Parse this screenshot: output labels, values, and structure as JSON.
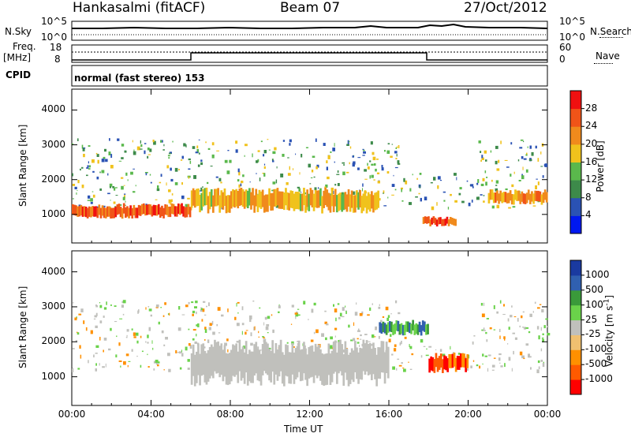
{
  "header": {
    "station": "Hankasalmi (fitACF)",
    "beam": "Beam 07",
    "date": "27/Oct/2012"
  },
  "top_panels": {
    "nsky_label": "N.Sky",
    "nsky_ticks": [
      "10^5",
      "10^0"
    ],
    "nsearch_label": "N.Search",
    "nsearch_ticks": [
      "10^5",
      "10^0"
    ],
    "freq_label": "Freq.",
    "freq_unit": "[MHz]",
    "freq_ticks": [
      "18",
      "8"
    ],
    "nave_label": "Nave",
    "nave_ticks": [
      "60",
      "0"
    ],
    "cpid_label": "CPID",
    "cpid_value": "normal (fast stereo) 153"
  },
  "colors": {
    "power_scale": [
      "#0018f0",
      "#2a52b4",
      "#3d8a4a",
      "#5ab84c",
      "#f0c21c",
      "#f08a1c",
      "#f05418",
      "#f01010"
    ],
    "velocity_scale": [
      "#ff0000",
      "#ff5a00",
      "#ff9000",
      "#f0c070",
      "#c0c0bc",
      "#6ad24a",
      "#3a9a3a",
      "#3060b0",
      "#1a3aa0"
    ],
    "ground_scatter": "#c0c0bc"
  },
  "chart_data": [
    {
      "type": "heatmap",
      "title": "",
      "xlabel": "Time UT",
      "ylabel": "Slant Range [km]",
      "x_ticks": [
        "00:00",
        "04:00",
        "08:00",
        "12:00",
        "16:00",
        "20:00",
        "00:00"
      ],
      "xlim_hours": [
        0,
        24
      ],
      "y_ticks": [
        "1000",
        "2000",
        "3000",
        "4000"
      ],
      "ylim": [
        180,
        4600
      ],
      "colorbar": {
        "label": "Power [dB]",
        "ticks": [
          "4",
          "8",
          "12",
          "16",
          "20",
          "24",
          "28"
        ],
        "range": [
          0,
          30
        ]
      },
      "features": [
        {
          "name": "band1",
          "t_start": 0.0,
          "t_end": 6.0,
          "range_center": 1100,
          "range_width": 300,
          "value": 28
        },
        {
          "name": "band2",
          "t_start": 6.0,
          "t_end": 15.5,
          "range_center": 1400,
          "range_width": 500,
          "value": 22
        },
        {
          "name": "band3",
          "t_start": 17.7,
          "t_end": 19.4,
          "range_center": 800,
          "range_width": 200,
          "value": 28
        },
        {
          "name": "band4",
          "t_start": 21.0,
          "t_end": 24.0,
          "range_center": 1500,
          "range_width": 300,
          "value": 24
        }
      ]
    },
    {
      "type": "heatmap",
      "title": "",
      "xlabel": "Time UT",
      "ylabel": "Slant Range [km]",
      "x_ticks": [
        "00:00",
        "04:00",
        "08:00",
        "12:00",
        "16:00",
        "20:00",
        "00:00"
      ],
      "xlim_hours": [
        0,
        24
      ],
      "y_ticks": [
        "1000",
        "2000",
        "3000",
        "4000"
      ],
      "ylim": [
        180,
        4600
      ],
      "colorbar": {
        "label": "Velocity [m s",
        "label_superscript": "-1",
        "label_close": "]",
        "ticks": [
          "1000",
          "500",
          "100",
          "25",
          "-25",
          "-100",
          "-500",
          "-1000"
        ],
        "range": [
          -1000,
          1000
        ]
      },
      "features": [
        {
          "name": "ground_scatter",
          "t_start": 6.0,
          "t_end": 16.0,
          "range_center": 1400,
          "range_width": 900,
          "value": 0
        },
        {
          "name": "negative_patch",
          "t_start": 18.0,
          "t_end": 20.0,
          "range_center": 1400,
          "range_width": 400,
          "value": -300
        },
        {
          "name": "positive_patch",
          "t_start": 15.5,
          "t_end": 18.0,
          "range_center": 2400,
          "range_width": 300,
          "value": 300
        }
      ]
    }
  ]
}
